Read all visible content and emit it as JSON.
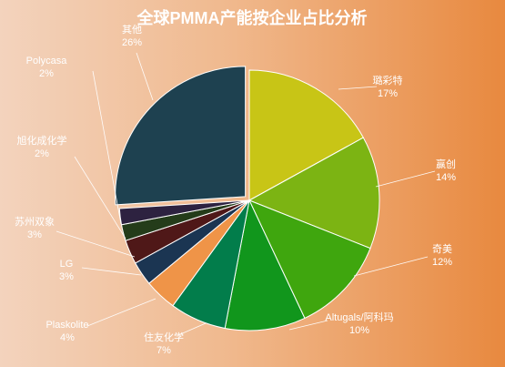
{
  "chart_data": {
    "type": "pie",
    "title": "全球PMMA产能按企业占比分析",
    "legend": "none",
    "slices": [
      {
        "name": "璐彩特",
        "label": "17%",
        "value": 17,
        "color": "#c8c516"
      },
      {
        "name": "赢创",
        "label": "14%",
        "value": 14,
        "color": "#7cb413"
      },
      {
        "name": "奇美",
        "label": "12%",
        "value": 12,
        "color": "#3fa60e"
      },
      {
        "name": "Altugals/阿科玛",
        "label": "10%",
        "value": 10,
        "color": "#11961c"
      },
      {
        "name": "住友化学",
        "label": "7%",
        "value": 7,
        "color": "#027d4b"
      },
      {
        "name": "Plaskolite",
        "label": "4%",
        "value": 4,
        "color": "#ef9448"
      },
      {
        "name": "LG",
        "label": "3%",
        "value": 3,
        "color": "#1b3552"
      },
      {
        "name": "苏州双象",
        "label": "3%",
        "value": 3,
        "color": "#4f1818"
      },
      {
        "name": "旭化成化学",
        "label": "2%",
        "value": 2,
        "color": "#243c1a"
      },
      {
        "name": "Polycasa",
        "label": "2%",
        "value": 2,
        "color": "#2d2240"
      },
      {
        "name": "其他",
        "label": "26%",
        "value": 26,
        "color": "#1e4150"
      }
    ]
  }
}
